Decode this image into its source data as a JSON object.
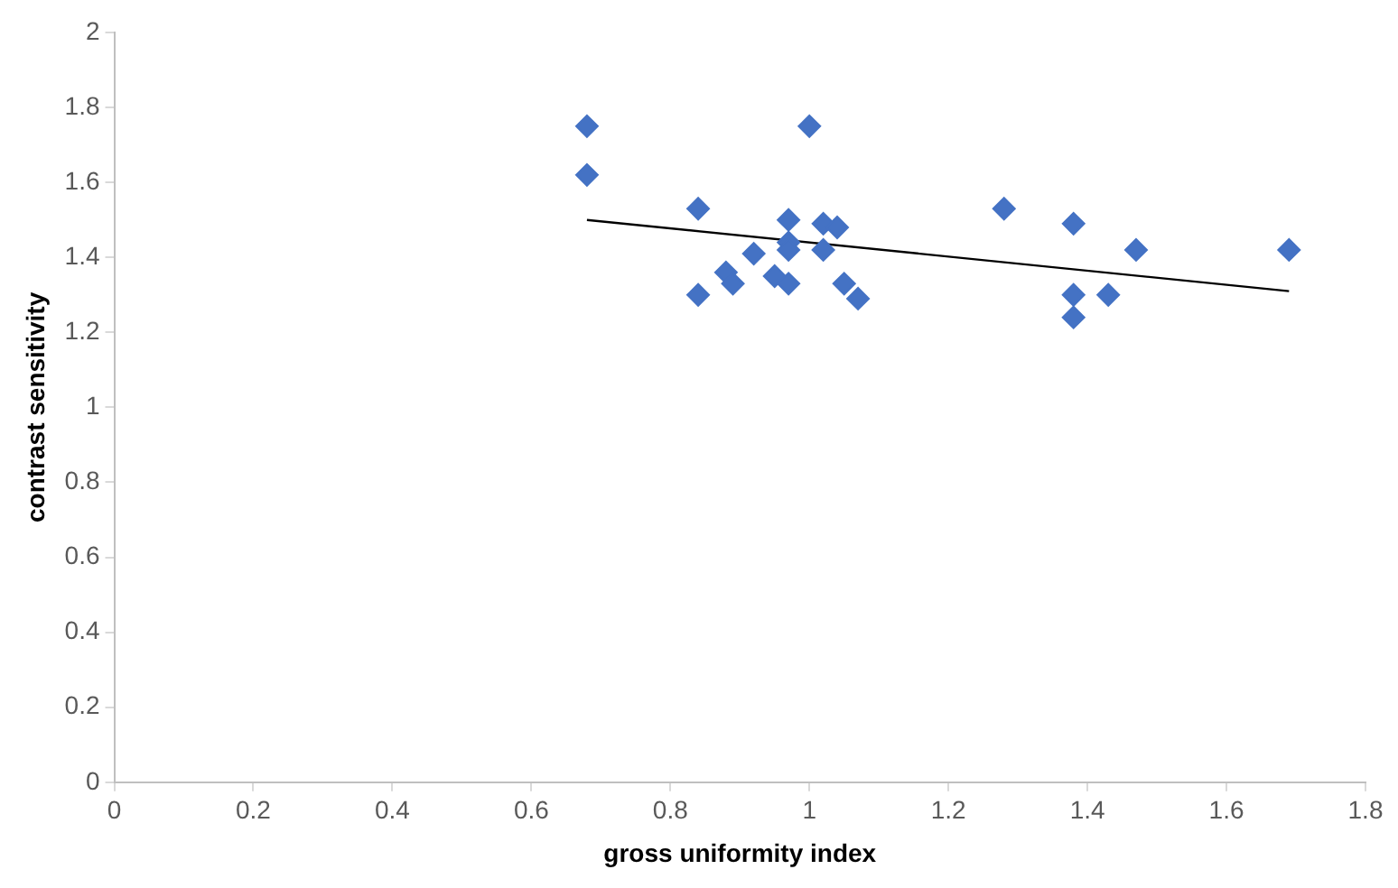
{
  "chart_data": {
    "type": "scatter",
    "xlabel": "gross uniformity index",
    "ylabel": "contrast sensitivity",
    "xlim": [
      0,
      1.8
    ],
    "xticks": [
      0,
      0.2,
      0.4,
      0.6,
      0.8,
      1,
      1.2,
      1.4,
      1.6,
      1.8
    ],
    "ylim": [
      0,
      2
    ],
    "yticks": [
      0,
      0.2,
      0.4,
      0.6,
      0.8,
      1,
      1.2,
      1.4,
      1.6,
      1.8,
      2
    ],
    "grid": false,
    "legend": false,
    "series": [
      {
        "marker": "diamond",
        "color": "#4472c4",
        "x": [
          0.68,
          0.68,
          0.84,
          0.84,
          0.88,
          0.89,
          0.92,
          0.95,
          0.97,
          0.97,
          0.97,
          0.97,
          1.0,
          1.02,
          1.02,
          1.04,
          1.05,
          1.07,
          1.28,
          1.38,
          1.38,
          1.38,
          1.43,
          1.47,
          1.69
        ],
        "values": [
          1.75,
          1.62,
          1.53,
          1.3,
          1.36,
          1.33,
          1.41,
          1.35,
          1.44,
          1.42,
          1.5,
          1.33,
          1.75,
          1.49,
          1.42,
          1.48,
          1.33,
          1.29,
          1.53,
          1.49,
          1.3,
          1.24,
          1.3,
          1.42,
          1.42
        ]
      },
      {
        "type": "line",
        "marker": "none",
        "color": "#000000",
        "x": [
          0.68,
          1.69
        ],
        "values": [
          1.5,
          1.31
        ]
      }
    ]
  }
}
